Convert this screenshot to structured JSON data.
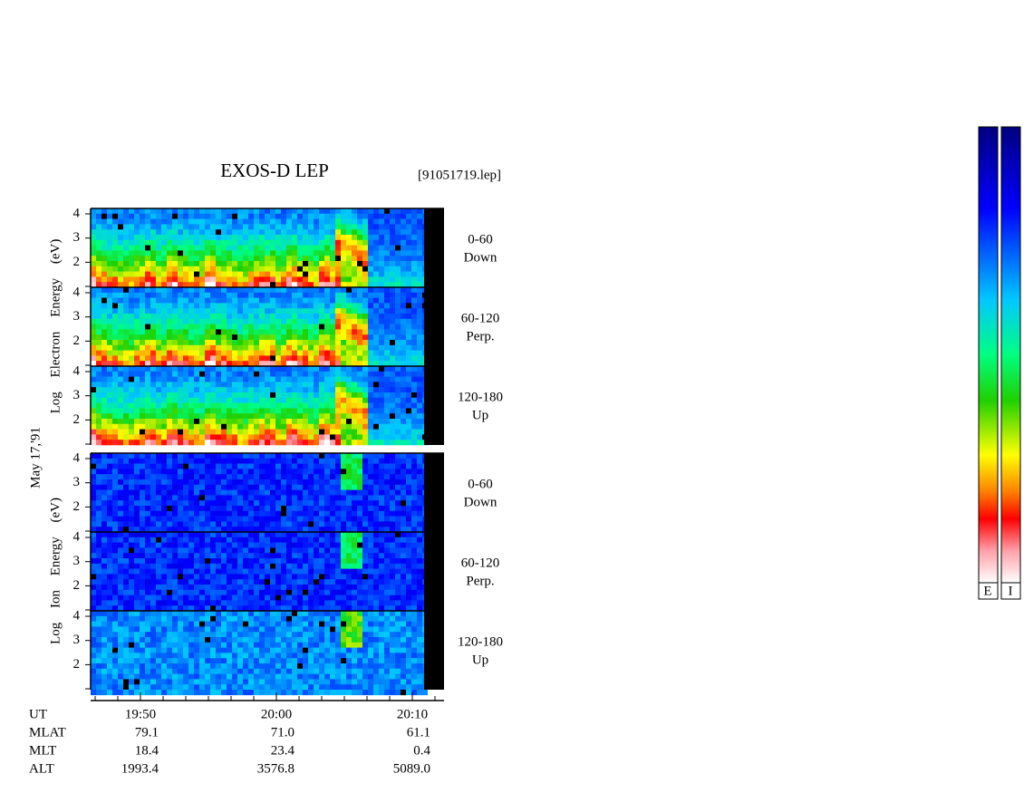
{
  "header": {
    "title": "EXOS-D LEP",
    "file": "[91051719.lep]"
  },
  "date": "May 17,'91",
  "electron_axis_label": "Log Electron Energy (eV)",
  "ion_axis_label": "Log Ion Energy (eV)",
  "energy_ticks": [
    "4",
    "3",
    "2"
  ],
  "panels": [
    {
      "angle": "0-60",
      "direction": "Down"
    },
    {
      "angle": "60-120",
      "direction": "Perp."
    },
    {
      "angle": "120-180",
      "direction": "Up"
    },
    {
      "angle": "0-60",
      "direction": "Down"
    },
    {
      "angle": "60-120",
      "direction": "Perp."
    },
    {
      "angle": "120-180",
      "direction": "Up"
    }
  ],
  "orbit": {
    "ut_label": "UT",
    "times": [
      "19:50",
      "20:00",
      "20:10"
    ],
    "rows": [
      {
        "label": "MLAT",
        "values": [
          "79.1",
          "71.0",
          "61.1"
        ]
      },
      {
        "label": "MLT",
        "values": [
          "18.4",
          "23.4",
          "0.4"
        ]
      },
      {
        "label": "ALT",
        "values": [
          "1993.4",
          "3576.8",
          "5089.0"
        ]
      }
    ]
  },
  "colorbars": [
    "E",
    "I"
  ]
}
